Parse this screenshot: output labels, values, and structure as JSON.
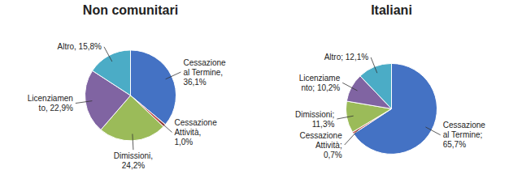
{
  "chart_data": [
    {
      "type": "pie",
      "title": "Non comunitari",
      "values": [
        36.1,
        1.0,
        24.2,
        22.9,
        15.8
      ],
      "value_labels": [
        "Cessazione\nal Termine,\n36,1%",
        "Cessazione\nAttività,\n1,0%",
        "Dimissioni,\n24,2%",
        "Licenziamen\nto, 22,9%",
        "Altro, 15,8%"
      ],
      "colors": [
        "#4472C4",
        "#C0504D",
        "#9BBB59",
        "#8064A2",
        "#4BACC6"
      ],
      "data_labels": true
    },
    {
      "type": "pie",
      "title": "Italiani",
      "values": [
        65.7,
        0.7,
        11.3,
        10.2,
        12.1
      ],
      "value_labels": [
        "Cessazione\nal Termine;\n65,7%",
        "Cessazione\nAttività;\n0,7%",
        "Dimissioni;\n11,3%",
        "Licenziame\nnto; 10,2%",
        "Altro; 12,1%"
      ],
      "colors": [
        "#4472C4",
        "#C0504D",
        "#9BBB59",
        "#8064A2",
        "#4BACC6"
      ],
      "data_labels": true
    }
  ]
}
